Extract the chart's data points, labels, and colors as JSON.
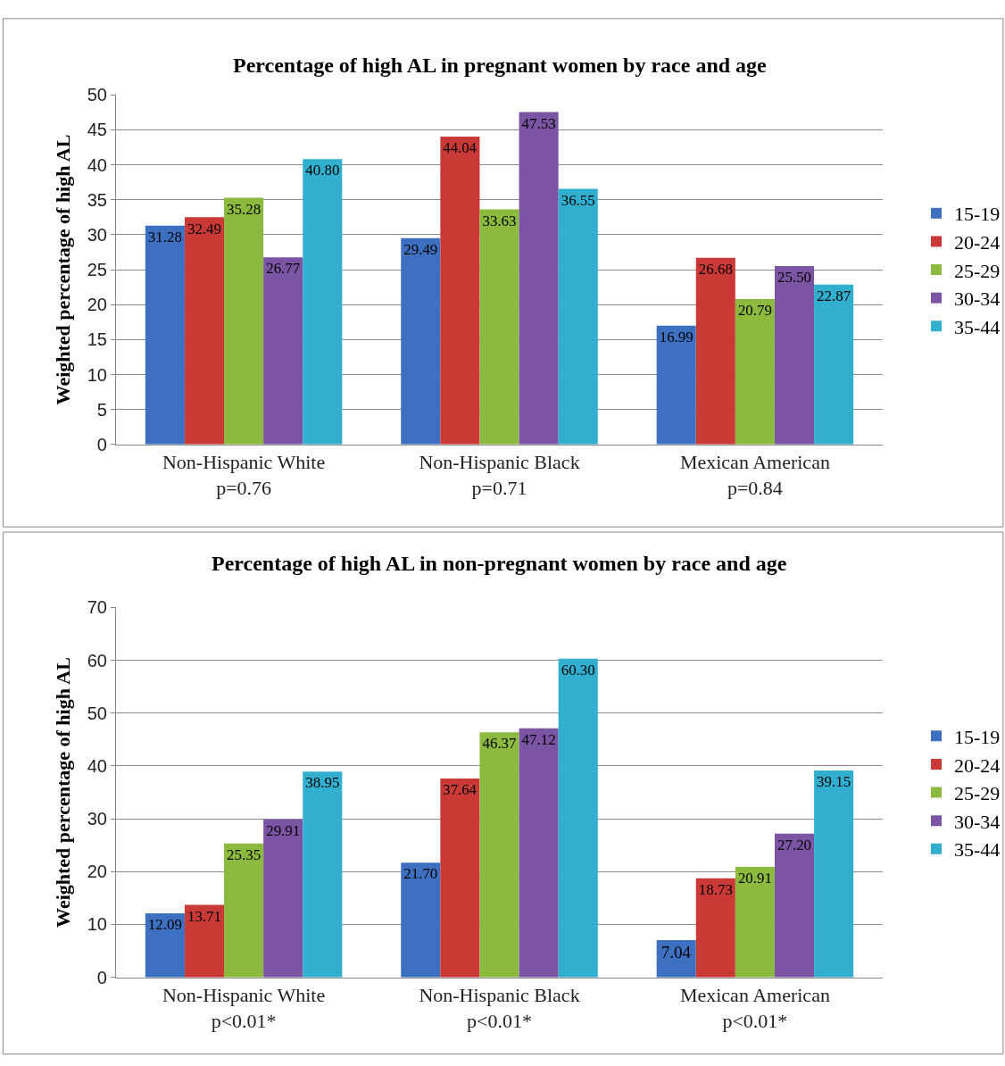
{
  "chart_data": [
    {
      "type": "bar",
      "title": "Percentage of high AL in pregnant women by race and age",
      "ylabel": "Weighted percentage of high AL",
      "categories": [
        "Non-Hispanic White\np=0.76",
        "Non-Hispanic Black\np=0.71",
        "Mexican American\np=0.84"
      ],
      "series": [
        {
          "name": "15-19",
          "color": "#3e70c2",
          "values": [
            31.28,
            29.49,
            16.99
          ],
          "value_labels": [
            "31.28",
            "29.49",
            "16.99"
          ]
        },
        {
          "name": "20-24",
          "color": "#c93a36",
          "values": [
            32.49,
            44.04,
            26.68
          ],
          "value_labels": [
            "32.49",
            "44.04",
            "26.68"
          ]
        },
        {
          "name": "25-29",
          "color": "#8cba3e",
          "values": [
            35.28,
            33.63,
            20.79
          ],
          "value_labels": [
            "35.28",
            "33.63",
            "20.79"
          ]
        },
        {
          "name": "30-34",
          "color": "#7b55a3",
          "values": [
            26.77,
            47.53,
            25.5
          ],
          "value_labels": [
            "26.77",
            "47.53",
            "25.50"
          ]
        },
        {
          "name": "35-44",
          "color": "#32aece",
          "values": [
            40.8,
            36.55,
            22.87
          ],
          "value_labels": [
            "40.80",
            "36.55",
            "22.87"
          ]
        }
      ],
      "ylim": [
        0,
        50
      ],
      "yticks": [
        0,
        5,
        10,
        15,
        20,
        25,
        30,
        35,
        40,
        45,
        50
      ],
      "grid": "y",
      "legend": "right"
    },
    {
      "type": "bar",
      "title": "Percentage of high AL in non-pregnant women by race and age",
      "ylabel": "Weighted percentage of high AL",
      "categories": [
        "Non-Hispanic White\np<0.01*",
        "Non-Hispanic Black\np<0.01*",
        "Mexican American\np<0.01*"
      ],
      "series": [
        {
          "name": "15-19",
          "color": "#3e70c2",
          "values": [
            12.09,
            21.7,
            7.04
          ],
          "value_labels": [
            "12.09",
            "21.70",
            "7.04"
          ]
        },
        {
          "name": "20-24",
          "color": "#c93a36",
          "values": [
            13.71,
            37.64,
            18.73
          ],
          "value_labels": [
            "13.71",
            "37.64",
            "18.73"
          ]
        },
        {
          "name": "25-29",
          "color": "#8cba3e",
          "values": [
            25.35,
            46.37,
            20.91
          ],
          "value_labels": [
            "25.35",
            "46.37",
            "20.91"
          ]
        },
        {
          "name": "30-34",
          "color": "#7b55a3",
          "values": [
            29.91,
            47.12,
            27.2
          ],
          "value_labels": [
            "29.91",
            "47.12",
            "27.20"
          ]
        },
        {
          "name": "35-44",
          "color": "#32aece",
          "values": [
            38.95,
            60.3,
            39.15
          ],
          "value_labels": [
            "38.95",
            "60.30",
            "39.15"
          ]
        }
      ],
      "ylim": [
        0,
        70
      ],
      "yticks": [
        0,
        10,
        20,
        30,
        40,
        50,
        60,
        70
      ],
      "grid": "y",
      "legend": "right"
    }
  ]
}
